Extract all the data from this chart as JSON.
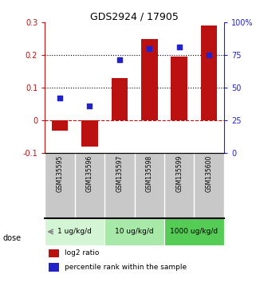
{
  "title": "GDS2924 / 17905",
  "samples": [
    "GSM135595",
    "GSM135596",
    "GSM135597",
    "GSM135598",
    "GSM135599",
    "GSM135600"
  ],
  "log2_ratios": [
    -0.03,
    -0.08,
    0.13,
    0.25,
    0.195,
    0.29
  ],
  "percentile_ranks_left_scale": [
    0.07,
    0.045,
    0.185,
    0.22,
    0.225,
    0.2
  ],
  "bar_color": "#bb1111",
  "dot_color": "#2222cc",
  "doses": [
    {
      "label": "1 ug/kg/d",
      "span": [
        0,
        2
      ],
      "color": "#d4f5d4"
    },
    {
      "label": "10 ug/kg/d",
      "span": [
        2,
        4
      ],
      "color": "#a8e8a8"
    },
    {
      "label": "1000 ug/kg/d",
      "span": [
        4,
        6
      ],
      "color": "#55cc55"
    }
  ],
  "ylim_left": [
    -0.1,
    0.3
  ],
  "ylim_right": [
    0,
    100
  ],
  "yticks_left": [
    -0.1,
    0.0,
    0.1,
    0.2,
    0.3
  ],
  "ytick_labels_left": [
    "-0.1",
    "0",
    "0.1",
    "0.2",
    "0.3"
  ],
  "yticks_right_pct": [
    0,
    25,
    50,
    75,
    100
  ],
  "ytick_labels_right": [
    "0",
    "25",
    "50",
    "75",
    "100%"
  ],
  "hlines": [
    0.1,
    0.2
  ],
  "zero_line": 0.0,
  "background_color": "#ffffff",
  "legend_red_label": "log2 ratio",
  "legend_blue_label": "percentile rank within the sample",
  "dose_label": "dose",
  "sample_bg_color": "#c8c8c8",
  "sample_border_color": "#ffffff"
}
